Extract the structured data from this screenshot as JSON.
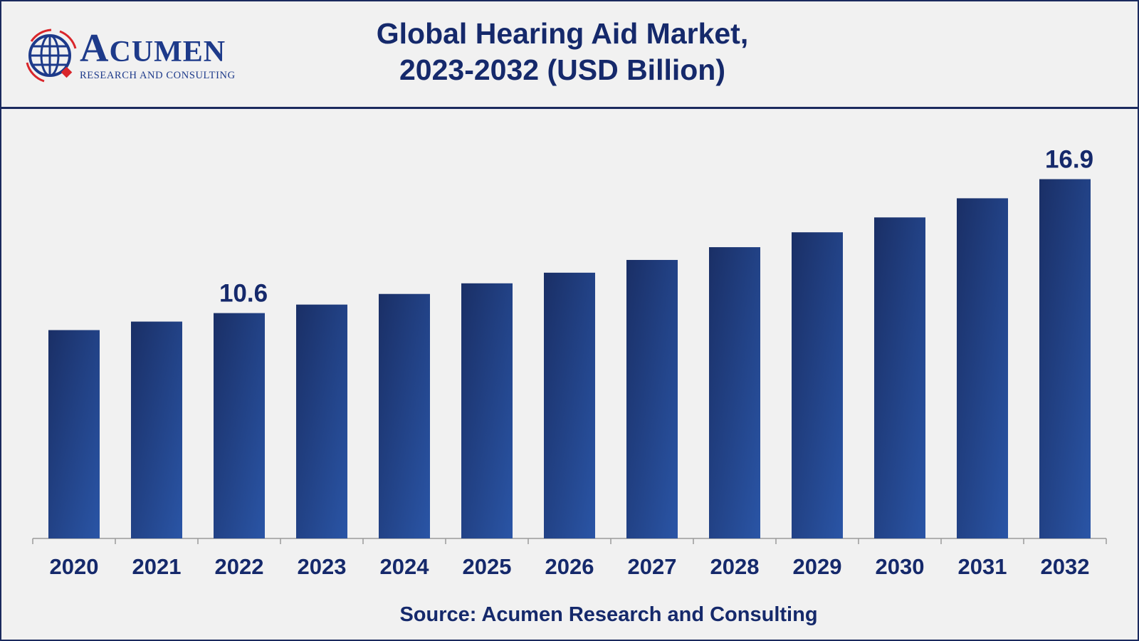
{
  "logo": {
    "name": "Acumen",
    "subtitle": "RESEARCH AND CONSULTING"
  },
  "title_line1": "Global Hearing Aid Market,",
  "title_line2": "2023-2032 (USD Billion)",
  "source": "Source: Acumen Research and Consulting",
  "colors": {
    "bar_dark": "#1a2f66",
    "bar_light": "#2a55a6",
    "text": "#15296b",
    "frame": "#1b2a5e"
  },
  "chart_data": {
    "type": "bar",
    "title": "Global Hearing Aid Market, 2023-2032 (USD Billion)",
    "categories": [
      "2020",
      "2021",
      "2022",
      "2023",
      "2024",
      "2025",
      "2026",
      "2027",
      "2028",
      "2029",
      "2030",
      "2031",
      "2032"
    ],
    "values": [
      9.8,
      10.2,
      10.6,
      11.0,
      11.5,
      12.0,
      12.5,
      13.1,
      13.7,
      14.4,
      15.1,
      16.0,
      16.9
    ],
    "data_labels": {
      "2022": "10.6",
      "2032": "16.9"
    },
    "xlabel": "",
    "ylabel": "",
    "ylim": [
      0,
      18
    ],
    "grid": false,
    "legend": "none"
  }
}
